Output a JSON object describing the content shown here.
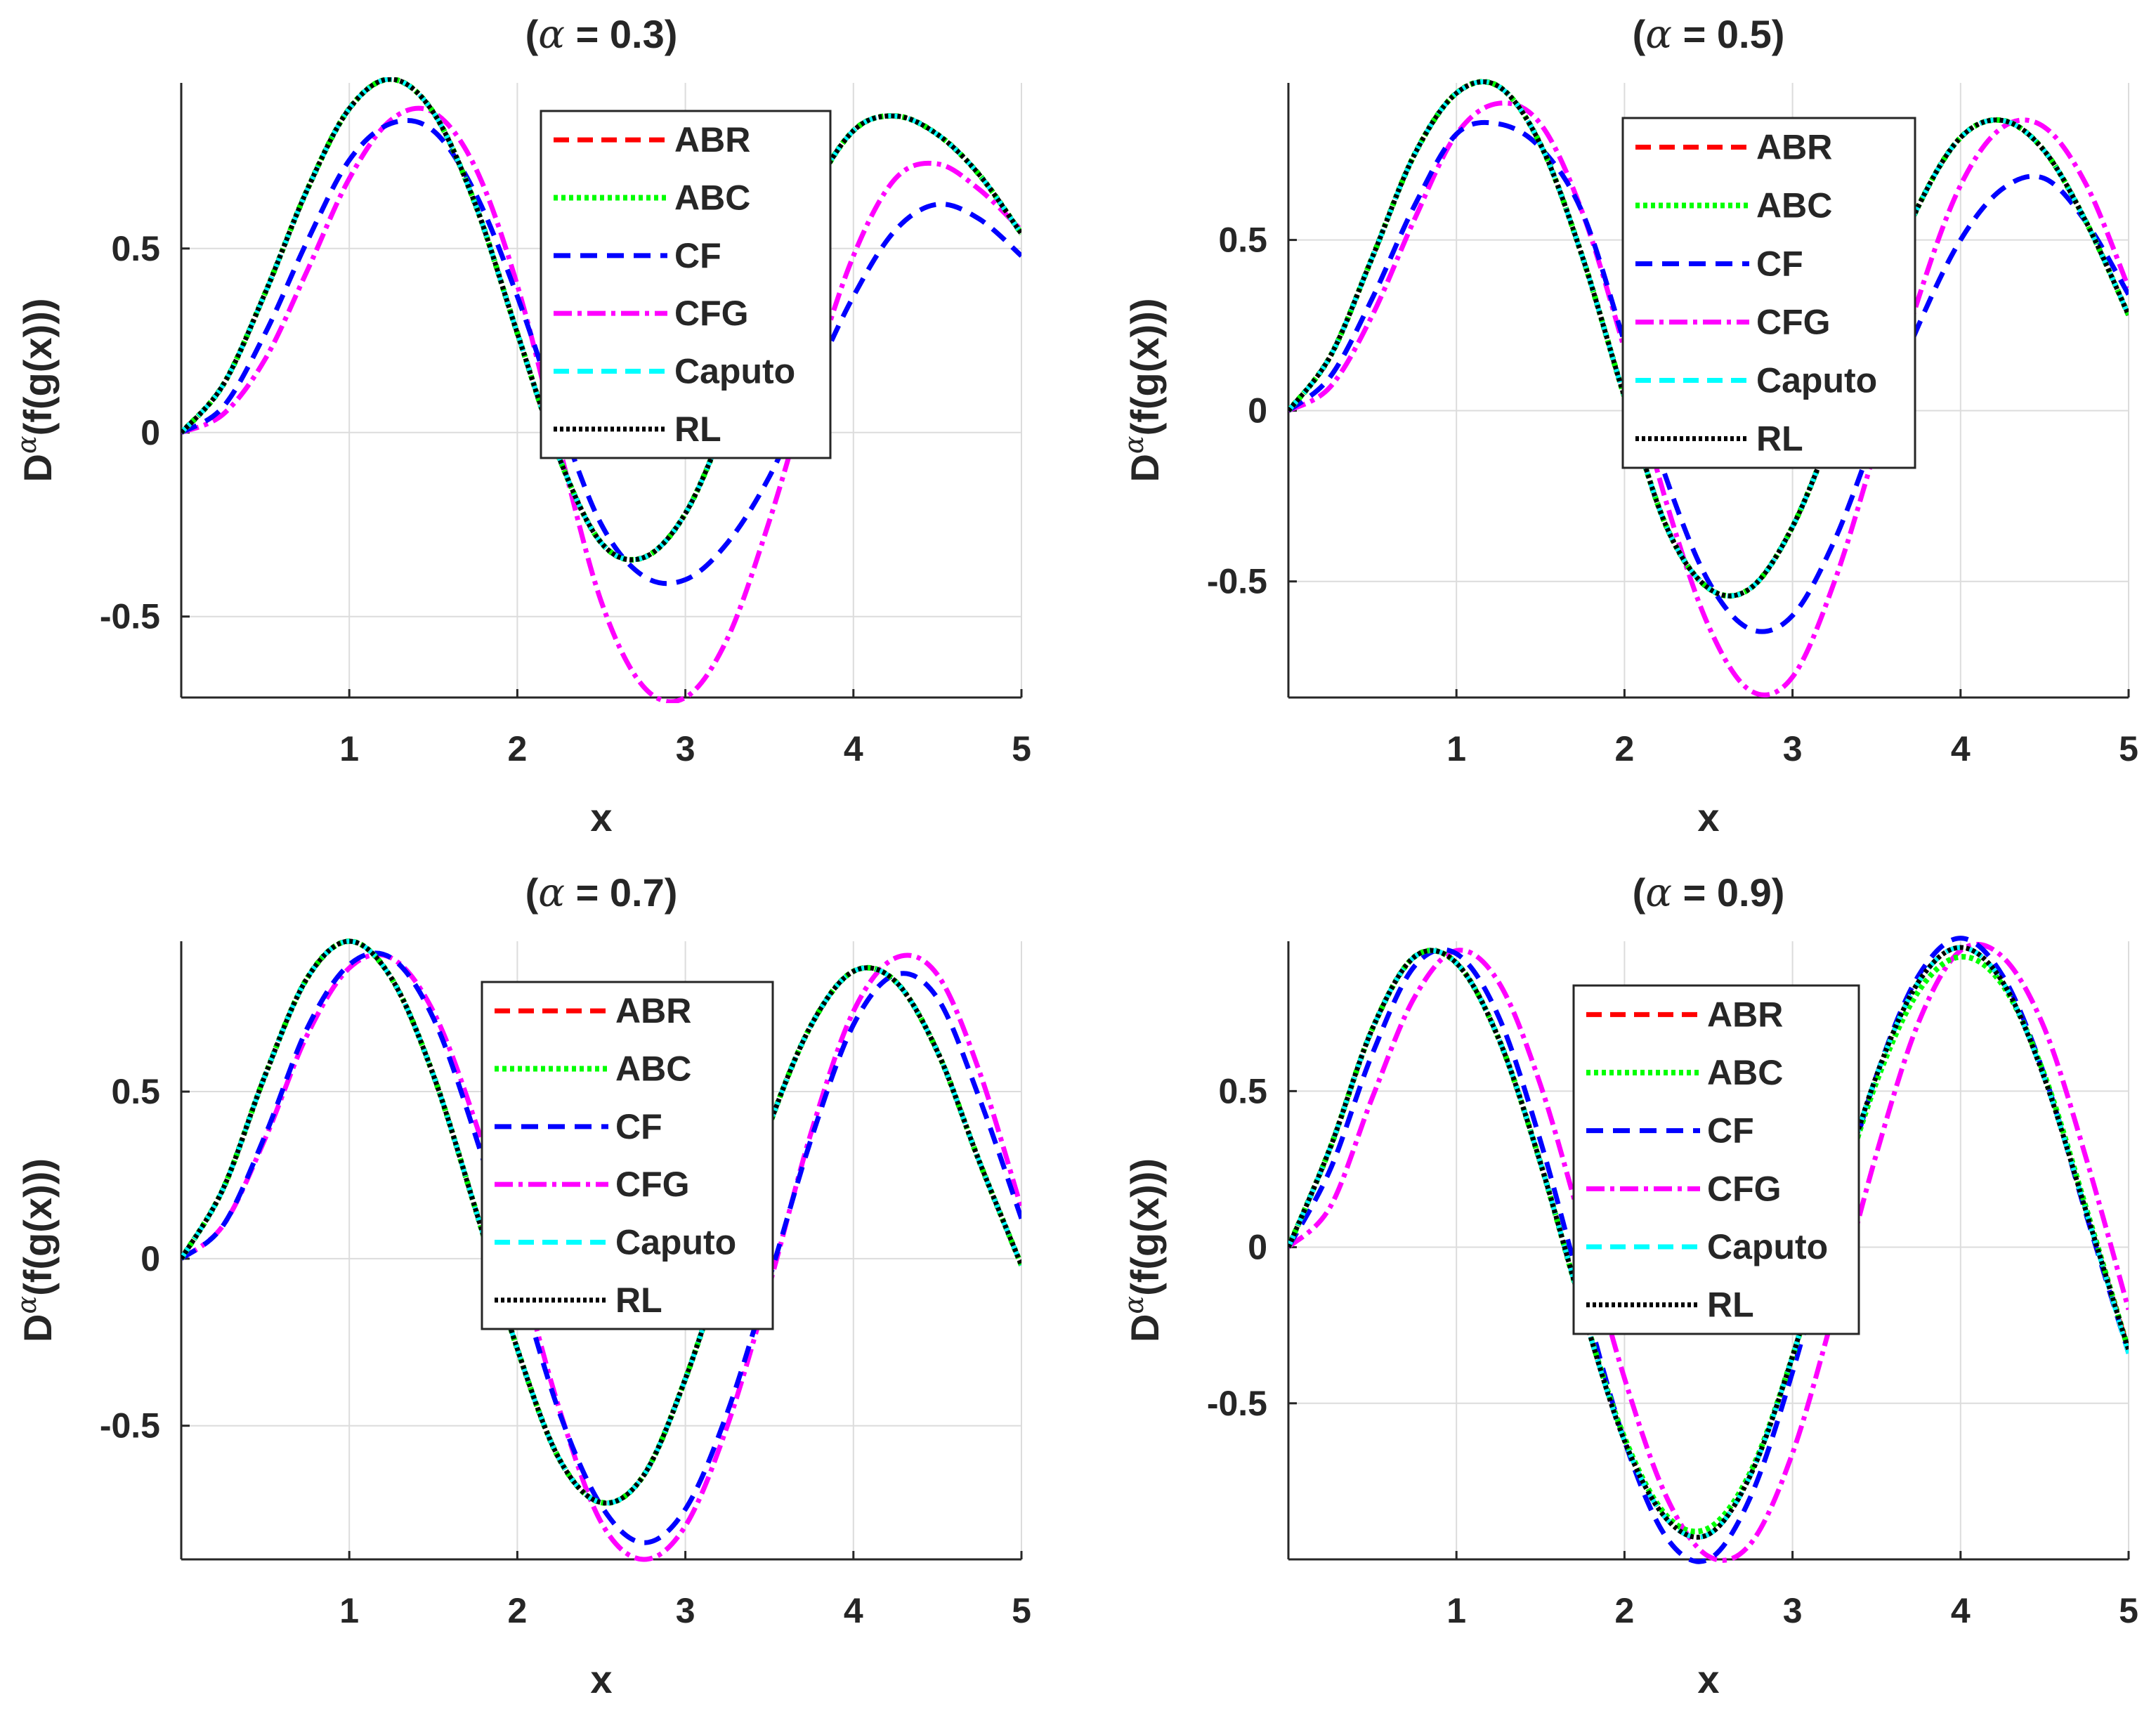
{
  "figure": {
    "colors": {
      "ABR": "#ff0000",
      "ABC": "#00ff00",
      "CF": "#0000ff",
      "CFG": "#ff00ff",
      "Caputo": "#00ffff",
      "RL": "#000000",
      "grid": "#dcdcdc",
      "axis": "#262626",
      "text": "#262626"
    }
  },
  "chart_data": [
    {
      "type": "line",
      "title": "(α = 0.3)",
      "title_prefix": "(",
      "title_symbol": "α",
      "title_suffix": " = 0.3)",
      "xlabel": "x",
      "ylabel_base": "D",
      "ylabel_sup": "α",
      "ylabel_tail": "(f(g(x)))",
      "xlim": [
        0,
        5
      ],
      "ylim": [
        -0.72,
        0.95
      ],
      "xticks": [
        1,
        2,
        3,
        4,
        5
      ],
      "xtick_labels": [
        "1",
        "2",
        "3",
        "4",
        "5"
      ],
      "yticks": [
        -0.5,
        0,
        0.5
      ],
      "ytick_labels": [
        "-0.5",
        "0",
        "0.5"
      ],
      "legend_position": "top-center",
      "x": [
        0,
        0.25,
        0.5,
        0.75,
        1,
        1.25,
        1.5,
        1.75,
        2,
        2.25,
        2.5,
        2.75,
        3,
        3.25,
        3.5,
        3.75,
        4,
        4.25,
        4.5,
        4.75,
        5
      ],
      "series": [
        {
          "name": "ABR",
          "values": [
            0,
            0.13,
            0.38,
            0.66,
            0.88,
            0.96,
            0.87,
            0.62,
            0.27,
            -0.07,
            -0.3,
            -0.34,
            -0.22,
            0.04,
            0.35,
            0.64,
            0.82,
            0.86,
            0.81,
            0.7,
            0.54
          ]
        },
        {
          "name": "ABC",
          "values": [
            0,
            0.13,
            0.38,
            0.66,
            0.88,
            0.96,
            0.87,
            0.62,
            0.27,
            -0.07,
            -0.3,
            -0.34,
            -0.22,
            0.04,
            0.35,
            0.64,
            0.82,
            0.86,
            0.81,
            0.7,
            0.54
          ]
        },
        {
          "name": "CF",
          "values": [
            0,
            0.07,
            0.27,
            0.52,
            0.74,
            0.84,
            0.82,
            0.65,
            0.37,
            0.04,
            -0.25,
            -0.39,
            -0.4,
            -0.3,
            -0.12,
            0.13,
            0.37,
            0.55,
            0.62,
            0.58,
            0.48
          ]
        },
        {
          "name": "CFG",
          "values": [
            0,
            0.05,
            0.2,
            0.44,
            0.69,
            0.85,
            0.87,
            0.72,
            0.4,
            -0.04,
            -0.46,
            -0.69,
            -0.72,
            -0.56,
            -0.24,
            0.14,
            0.48,
            0.69,
            0.73,
            0.66,
            0.55
          ]
        },
        {
          "name": "Caputo",
          "values": [
            0,
            0.13,
            0.38,
            0.66,
            0.88,
            0.96,
            0.87,
            0.62,
            0.27,
            -0.07,
            -0.3,
            -0.34,
            -0.22,
            0.04,
            0.35,
            0.64,
            0.82,
            0.86,
            0.81,
            0.7,
            0.54
          ]
        },
        {
          "name": "RL",
          "values": [
            0,
            0.13,
            0.38,
            0.66,
            0.88,
            0.96,
            0.87,
            0.62,
            0.27,
            -0.07,
            -0.3,
            -0.34,
            -0.22,
            0.04,
            0.35,
            0.64,
            0.82,
            0.86,
            0.81,
            0.7,
            0.54
          ]
        }
      ]
    },
    {
      "type": "line",
      "title": "(α = 0.5)",
      "title_prefix": "(",
      "title_symbol": "α",
      "title_suffix": " = 0.5)",
      "xlabel": "x",
      "ylabel_base": "D",
      "ylabel_sup": "α",
      "ylabel_tail": "(f(g(x)))",
      "xlim": [
        0,
        5
      ],
      "ylim": [
        -0.84,
        0.96
      ],
      "xticks": [
        1,
        2,
        3,
        4,
        5
      ],
      "xtick_labels": [
        "1",
        "2",
        "3",
        "4",
        "5"
      ],
      "yticks": [
        -0.5,
        0,
        0.5
      ],
      "ytick_labels": [
        "-0.5",
        "0",
        "0.5"
      ],
      "legend_position": "top-right",
      "x": [
        0,
        0.25,
        0.5,
        0.75,
        1,
        1.25,
        1.5,
        1.75,
        2,
        2.25,
        2.5,
        2.75,
        3,
        3.25,
        3.5,
        3.75,
        4,
        4.25,
        4.5,
        4.75,
        5
      ],
      "series": [
        {
          "name": "ABR",
          "values": [
            0,
            0.16,
            0.45,
            0.75,
            0.93,
            0.95,
            0.78,
            0.45,
            0.04,
            -0.34,
            -0.52,
            -0.52,
            -0.34,
            -0.04,
            0.3,
            0.6,
            0.8,
            0.85,
            0.76,
            0.55,
            0.28
          ]
        },
        {
          "name": "ABC",
          "values": [
            0,
            0.16,
            0.45,
            0.75,
            0.93,
            0.95,
            0.78,
            0.45,
            0.04,
            -0.34,
            -0.52,
            -0.52,
            -0.34,
            -0.04,
            0.3,
            0.6,
            0.8,
            0.85,
            0.76,
            0.55,
            0.28
          ]
        },
        {
          "name": "CF",
          "values": [
            0,
            0.1,
            0.33,
            0.6,
            0.81,
            0.84,
            0.77,
            0.58,
            0.2,
            -0.2,
            -0.5,
            -0.64,
            -0.6,
            -0.38,
            -0.06,
            0.25,
            0.5,
            0.65,
            0.68,
            0.55,
            0.34
          ]
        },
        {
          "name": "CFG",
          "values": [
            0,
            0.07,
            0.28,
            0.56,
            0.81,
            0.9,
            0.84,
            0.58,
            0.18,
            -0.27,
            -0.63,
            -0.82,
            -0.78,
            -0.5,
            -0.1,
            0.33,
            0.66,
            0.83,
            0.83,
            0.66,
            0.36
          ]
        },
        {
          "name": "Caputo",
          "values": [
            0,
            0.16,
            0.45,
            0.75,
            0.93,
            0.95,
            0.78,
            0.45,
            0.04,
            -0.34,
            -0.52,
            -0.52,
            -0.34,
            -0.04,
            0.3,
            0.6,
            0.8,
            0.85,
            0.76,
            0.55,
            0.28
          ]
        },
        {
          "name": "RL",
          "values": [
            0,
            0.16,
            0.45,
            0.75,
            0.93,
            0.95,
            0.78,
            0.45,
            0.04,
            -0.34,
            -0.52,
            -0.52,
            -0.34,
            -0.04,
            0.3,
            0.6,
            0.8,
            0.85,
            0.76,
            0.55,
            0.28
          ]
        }
      ]
    },
    {
      "type": "line",
      "title": "(α = 0.7)",
      "title_prefix": "(",
      "title_symbol": "α",
      "title_suffix": " = 0.7)",
      "xlabel": "x",
      "ylabel_base": "D",
      "ylabel_sup": "α",
      "ylabel_tail": "(f(g(x)))",
      "xlim": [
        0,
        5
      ],
      "ylim": [
        -0.9,
        0.95
      ],
      "xticks": [
        1,
        2,
        3,
        4,
        5
      ],
      "xtick_labels": [
        "1",
        "2",
        "3",
        "4",
        "5"
      ],
      "yticks": [
        -0.5,
        0,
        0.5
      ],
      "ytick_labels": [
        "-0.5",
        "0",
        "0.5"
      ],
      "legend_position": "top-center",
      "x": [
        0,
        0.25,
        0.5,
        0.75,
        1,
        1.25,
        1.5,
        1.75,
        2,
        2.25,
        2.5,
        2.75,
        3,
        3.25,
        3.5,
        3.75,
        4,
        4.25,
        4.5,
        4.75,
        5
      ],
      "series": [
        {
          "name": "ABR",
          "values": [
            0,
            0.21,
            0.55,
            0.84,
            0.95,
            0.84,
            0.55,
            0.15,
            -0.27,
            -0.6,
            -0.73,
            -0.65,
            -0.36,
            0.02,
            0.4,
            0.7,
            0.86,
            0.83,
            0.62,
            0.29,
            -0.02
          ]
        },
        {
          "name": "ABC",
          "values": [
            0,
            0.21,
            0.55,
            0.84,
            0.95,
            0.84,
            0.55,
            0.15,
            -0.27,
            -0.6,
            -0.73,
            -0.65,
            -0.36,
            0.02,
            0.4,
            0.7,
            0.86,
            0.83,
            0.62,
            0.29,
            -0.02
          ]
        },
        {
          "name": "CF",
          "values": [
            0,
            0.1,
            0.37,
            0.69,
            0.88,
            0.9,
            0.72,
            0.37,
            -0.05,
            -0.46,
            -0.74,
            -0.85,
            -0.75,
            -0.46,
            -0.06,
            0.36,
            0.7,
            0.85,
            0.78,
            0.48,
            0.12
          ]
        },
        {
          "name": "CFG",
          "values": [
            0,
            0.1,
            0.36,
            0.67,
            0.87,
            0.9,
            0.74,
            0.41,
            0.0,
            -0.45,
            -0.79,
            -0.9,
            -0.8,
            -0.5,
            -0.08,
            0.38,
            0.74,
            0.9,
            0.85,
            0.56,
            0.15
          ]
        },
        {
          "name": "Caputo",
          "values": [
            0,
            0.21,
            0.55,
            0.84,
            0.95,
            0.84,
            0.55,
            0.15,
            -0.27,
            -0.6,
            -0.73,
            -0.65,
            -0.36,
            0.02,
            0.4,
            0.7,
            0.86,
            0.83,
            0.62,
            0.29,
            -0.02
          ]
        },
        {
          "name": "RL",
          "values": [
            0,
            0.21,
            0.55,
            0.84,
            0.95,
            0.84,
            0.55,
            0.15,
            -0.27,
            -0.6,
            -0.73,
            -0.65,
            -0.36,
            0.02,
            0.4,
            0.7,
            0.86,
            0.83,
            0.62,
            0.29,
            -0.02
          ]
        }
      ]
    },
    {
      "type": "line",
      "title": "(α = 0.9)",
      "title_prefix": "(",
      "title_symbol": "α",
      "title_suffix": " = 0.9)",
      "xlabel": "x",
      "ylabel_base": "D",
      "ylabel_sup": "α",
      "ylabel_tail": "(f(g(x)))",
      "xlim": [
        0,
        5
      ],
      "ylim": [
        -1.0,
        0.98
      ],
      "xticks": [
        1,
        2,
        3,
        4,
        5
      ],
      "xtick_labels": [
        "1",
        "2",
        "3",
        "4",
        "5"
      ],
      "yticks": [
        -0.5,
        0,
        0.5
      ],
      "ytick_labels": [
        "-0.5",
        "0",
        "0.5"
      ],
      "legend_position": "top-center",
      "x": [
        0,
        0.25,
        0.5,
        0.75,
        1,
        1.25,
        1.5,
        1.75,
        2,
        2.25,
        2.5,
        2.75,
        3,
        3.25,
        3.5,
        3.75,
        4,
        4.25,
        4.5,
        4.75,
        5
      ],
      "series": [
        {
          "name": "ABR",
          "values": [
            0,
            0.32,
            0.7,
            0.93,
            0.91,
            0.67,
            0.27,
            -0.2,
            -0.62,
            -0.87,
            -0.92,
            -0.73,
            -0.35,
            0.12,
            0.55,
            0.85,
            0.96,
            0.85,
            0.54,
            0.11,
            -0.33
          ]
        },
        {
          "name": "ABC",
          "values": [
            0,
            0.32,
            0.7,
            0.93,
            0.91,
            0.67,
            0.27,
            -0.2,
            -0.61,
            -0.86,
            -0.9,
            -0.72,
            -0.35,
            0.11,
            0.53,
            0.82,
            0.93,
            0.84,
            0.55,
            0.12,
            -0.33
          ]
        },
        {
          "name": "CF",
          "values": [
            0,
            0.25,
            0.62,
            0.9,
            0.94,
            0.74,
            0.34,
            -0.15,
            -0.62,
            -0.93,
            -1.0,
            -0.8,
            -0.4,
            0.09,
            0.55,
            0.87,
            0.99,
            0.87,
            0.55,
            0.1,
            -0.34
          ]
        },
        {
          "name": "CFG",
          "values": [
            0,
            0.13,
            0.48,
            0.8,
            0.95,
            0.85,
            0.52,
            0.06,
            -0.42,
            -0.8,
            -0.99,
            -0.95,
            -0.66,
            -0.2,
            0.3,
            0.72,
            0.95,
            0.93,
            0.7,
            0.28,
            -0.2
          ]
        },
        {
          "name": "Caputo",
          "values": [
            0,
            0.32,
            0.7,
            0.93,
            0.91,
            0.67,
            0.27,
            -0.2,
            -0.62,
            -0.87,
            -0.92,
            -0.73,
            -0.35,
            0.12,
            0.55,
            0.85,
            0.96,
            0.85,
            0.54,
            0.11,
            -0.34
          ]
        },
        {
          "name": "RL",
          "values": [
            0,
            0.32,
            0.7,
            0.93,
            0.91,
            0.67,
            0.27,
            -0.2,
            -0.62,
            -0.87,
            -0.92,
            -0.73,
            -0.35,
            0.12,
            0.55,
            0.85,
            0.96,
            0.85,
            0.54,
            0.11,
            -0.33
          ]
        }
      ]
    }
  ]
}
